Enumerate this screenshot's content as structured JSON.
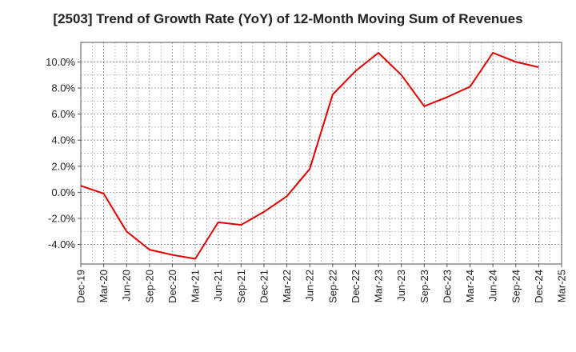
{
  "chart_data": {
    "type": "line",
    "title": "[2503]  Trend of Growth Rate (YoY) of 12-Month Moving Sum of Revenues",
    "xlabel": "",
    "ylabel": "",
    "x_ticks": [
      "Dec-19",
      "Mar-20",
      "Jun-20",
      "Sep-20",
      "Dec-20",
      "Mar-21",
      "Jun-21",
      "Sep-21",
      "Dec-21",
      "Mar-22",
      "Jun-22",
      "Sep-22",
      "Dec-22",
      "Mar-23",
      "Jun-23",
      "Sep-23",
      "Dec-23",
      "Mar-24",
      "Jun-24",
      "Sep-24",
      "Dec-24",
      "Mar-25"
    ],
    "y_ticks": [
      {
        "value": -4,
        "label": "-4.0%"
      },
      {
        "value": -2,
        "label": "-2.0%"
      },
      {
        "value": 0,
        "label": "0.0%"
      },
      {
        "value": 2,
        "label": "2.0%"
      },
      {
        "value": 4,
        "label": "4.0%"
      },
      {
        "value": 6,
        "label": "6.0%"
      },
      {
        "value": 8,
        "label": "8.0%"
      },
      {
        "value": 10,
        "label": "10.0%"
      }
    ],
    "ylim": [
      -5.5,
      11.5
    ],
    "grid": true,
    "color": "#e00000",
    "series": [
      {
        "x": [
          "Dec-19",
          "Mar-20",
          "Jun-20",
          "Sep-20",
          "Dec-20",
          "Mar-21",
          "Jun-21",
          "Sep-21",
          "Dec-21",
          "Mar-22",
          "Jun-22",
          "Sep-22",
          "Dec-22",
          "Mar-23",
          "Jun-23",
          "Sep-23",
          "Dec-23",
          "Mar-24",
          "Jun-24",
          "Sep-24",
          "Dec-24"
        ],
        "values": [
          0.5,
          -0.1,
          -3.0,
          -4.4,
          -4.8,
          -5.1,
          -2.3,
          -2.5,
          -1.5,
          -0.3,
          1.8,
          7.5,
          9.3,
          10.7,
          9.0,
          6.6,
          7.3,
          8.1,
          10.7,
          10.0,
          9.6
        ]
      }
    ]
  }
}
